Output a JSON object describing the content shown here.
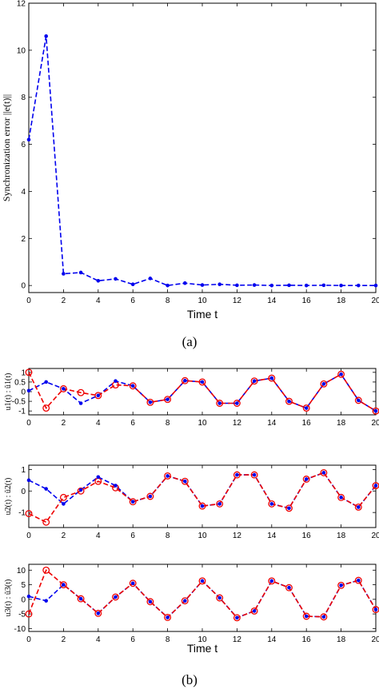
{
  "captions": {
    "a": "(a)",
    "b": "(b)"
  },
  "colors": {
    "blue": "#0000ee",
    "red": "#ee0000",
    "axis": "#000000"
  },
  "chart_data": [
    {
      "type": "line",
      "panel": "a",
      "xlabel": "Time  t",
      "ylabel": "Synchronization error  ||e(t)||",
      "xlim": [
        0,
        20
      ],
      "ylim": [
        -0.3,
        12
      ],
      "xticks": [
        0,
        2,
        4,
        6,
        8,
        10,
        12,
        14,
        16,
        18,
        20
      ],
      "yticks": [
        0,
        2,
        4,
        6,
        8,
        10,
        12
      ],
      "grid": false,
      "series": [
        {
          "color": "blue",
          "marker": "dot",
          "x": [
            0,
            1,
            2,
            3,
            4,
            5,
            6,
            7,
            8,
            9,
            10,
            11,
            12,
            13,
            14,
            15,
            16,
            17,
            18,
            19,
            20
          ],
          "y": [
            6.2,
            10.6,
            0.5,
            0.55,
            0.2,
            0.28,
            0.05,
            0.3,
            0.0,
            0.1,
            0.02,
            0.05,
            0.01,
            0.02,
            0.0,
            0.01,
            0.0,
            0.01,
            0.0,
            0.0,
            0.0
          ]
        }
      ]
    },
    {
      "type": "line",
      "panel": "b1",
      "xlabel": "",
      "ylabel": "u1(t) : û1(t)",
      "xlim": [
        0,
        20
      ],
      "ylim": [
        -1.2,
        1.2
      ],
      "xticks": [
        0,
        2,
        4,
        6,
        8,
        10,
        12,
        14,
        16,
        18,
        20
      ],
      "yticks": [
        -1,
        -0.5,
        0,
        0.5,
        1
      ],
      "grid": false,
      "series": [
        {
          "color": "blue",
          "marker": "dot",
          "x": [
            0,
            1,
            2,
            3,
            4,
            5,
            6,
            7,
            8,
            9,
            10,
            11,
            12,
            13,
            14,
            15,
            16,
            17,
            18,
            19,
            20
          ],
          "y": [
            0.05,
            0.5,
            0.15,
            -0.6,
            -0.2,
            0.55,
            0.3,
            -0.55,
            -0.4,
            0.57,
            0.5,
            -0.6,
            -0.6,
            0.55,
            0.7,
            -0.5,
            -0.85,
            0.4,
            0.9,
            -0.45,
            -1.0
          ]
        },
        {
          "color": "red",
          "marker": "circle",
          "x": [
            0,
            1,
            2,
            3,
            4,
            5,
            6,
            7,
            8,
            9,
            10,
            11,
            12,
            13,
            14,
            15,
            16,
            17,
            18,
            19,
            20
          ],
          "y": [
            1.0,
            -0.85,
            0.15,
            -0.05,
            -0.2,
            0.35,
            0.3,
            -0.55,
            -0.4,
            0.57,
            0.5,
            -0.6,
            -0.6,
            0.55,
            0.7,
            -0.5,
            -0.85,
            0.4,
            0.9,
            -0.45,
            -1.0
          ]
        }
      ]
    },
    {
      "type": "line",
      "panel": "b2",
      "xlabel": "",
      "ylabel": "u2(t) : û2(t)",
      "xlim": [
        0,
        20
      ],
      "ylim": [
        -1.7,
        1.2
      ],
      "xticks": [
        0,
        2,
        4,
        6,
        8,
        10,
        12,
        14,
        16,
        18,
        20
      ],
      "yticks": [
        -1,
        0,
        1
      ],
      "grid": false,
      "series": [
        {
          "color": "blue",
          "marker": "dot",
          "x": [
            0,
            1,
            2,
            3,
            4,
            5,
            6,
            7,
            8,
            9,
            10,
            11,
            12,
            13,
            14,
            15,
            16,
            17,
            18,
            19,
            20
          ],
          "y": [
            0.5,
            0.1,
            -0.6,
            0.05,
            0.65,
            0.25,
            -0.5,
            -0.25,
            0.7,
            0.45,
            -0.7,
            -0.6,
            0.75,
            0.75,
            -0.6,
            -0.8,
            0.55,
            0.85,
            -0.3,
            -0.75,
            0.25
          ]
        },
        {
          "color": "red",
          "marker": "circle",
          "x": [
            0,
            1,
            2,
            3,
            4,
            5,
            6,
            7,
            8,
            9,
            10,
            11,
            12,
            13,
            14,
            15,
            16,
            17,
            18,
            19,
            20
          ],
          "y": [
            -1.05,
            -1.45,
            -0.3,
            0.0,
            0.45,
            0.15,
            -0.5,
            -0.25,
            0.7,
            0.45,
            -0.7,
            -0.6,
            0.75,
            0.75,
            -0.6,
            -0.8,
            0.55,
            0.85,
            -0.3,
            -0.75,
            0.25
          ]
        }
      ]
    },
    {
      "type": "line",
      "panel": "b3",
      "xlabel": "Time  t",
      "ylabel": "u3(t) : û3(t)",
      "xlim": [
        0,
        20
      ],
      "ylim": [
        -11,
        12
      ],
      "xticks": [
        0,
        2,
        4,
        6,
        8,
        10,
        12,
        14,
        16,
        18,
        20
      ],
      "yticks": [
        -10,
        -5,
        0,
        5,
        10
      ],
      "grid": false,
      "series": [
        {
          "color": "blue",
          "marker": "dot",
          "x": [
            0,
            1,
            2,
            3,
            4,
            5,
            6,
            7,
            8,
            9,
            10,
            11,
            12,
            13,
            14,
            15,
            16,
            17,
            18,
            19,
            20
          ],
          "y": [
            1.0,
            -0.5,
            5.0,
            0.2,
            -4.8,
            0.8,
            5.5,
            -0.8,
            -6.2,
            -0.5,
            6.3,
            0.5,
            -6.3,
            -4.0,
            6.3,
            4.0,
            -5.8,
            -6.0,
            4.8,
            6.5,
            -3.5
          ]
        },
        {
          "color": "red",
          "marker": "circle",
          "x": [
            0,
            1,
            2,
            3,
            4,
            5,
            6,
            7,
            8,
            9,
            10,
            11,
            12,
            13,
            14,
            15,
            16,
            17,
            18,
            19,
            20
          ],
          "y": [
            -5.0,
            10.0,
            5.0,
            0.2,
            -4.8,
            0.8,
            5.5,
            -0.8,
            -6.2,
            -0.5,
            6.3,
            0.5,
            -6.3,
            -4.0,
            6.3,
            4.0,
            -5.8,
            -6.0,
            4.8,
            6.5,
            -3.5
          ]
        }
      ]
    }
  ]
}
